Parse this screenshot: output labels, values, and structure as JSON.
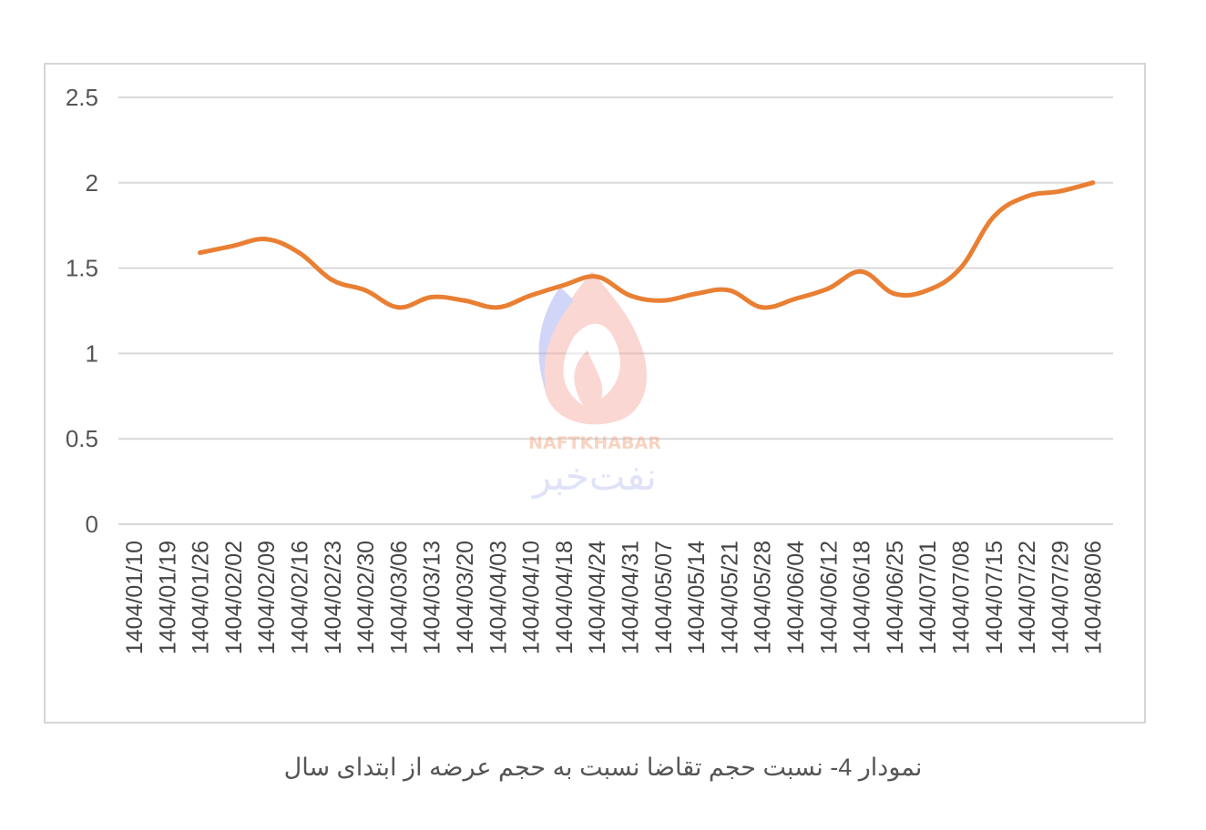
{
  "caption": "نمودار 4- نسبت حجم تقاضا نسبت به حجم عرضه از ابتدای سال",
  "watermark": {
    "latin": "NAFTKHABAR",
    "persian": "نفت‌خبر"
  },
  "colors": {
    "line": "#e97f33",
    "grid": "#d9d9d9",
    "frame": "#d6d6d6",
    "text": "#555555"
  },
  "chart_data": {
    "type": "line",
    "title": "",
    "xlabel": "",
    "ylabel": "",
    "ylim": [
      0,
      2.5
    ],
    "yticks": [
      "0",
      "0.5",
      "1",
      "1.5",
      "2",
      "2.5"
    ],
    "grid": true,
    "legend": "none",
    "categories": [
      "1404/01/10",
      "1404/01/19",
      "1404/01/26",
      "1404/02/02",
      "1404/02/09",
      "1404/02/16",
      "1404/02/23",
      "1404/02/30",
      "1404/03/06",
      "1404/03/13",
      "1404/03/20",
      "1404/04/03",
      "1404/04/10",
      "1404/04/18",
      "1404/04/24",
      "1404/04/31",
      "1404/05/07",
      "1404/05/14",
      "1404/05/21",
      "1404/05/28",
      "1404/06/04",
      "1404/06/12",
      "1404/06/18",
      "1404/06/25",
      "1404/07/01",
      "1404/07/08",
      "1404/07/15",
      "1404/07/22",
      "1404/07/29",
      "1404/08/06"
    ],
    "series": [
      {
        "values": [
          null,
          null,
          1.59,
          1.63,
          1.67,
          1.59,
          1.43,
          1.37,
          1.27,
          1.33,
          1.31,
          1.27,
          1.34,
          1.4,
          1.45,
          1.34,
          1.31,
          1.35,
          1.37,
          1.27,
          1.32,
          1.38,
          1.48,
          1.35,
          1.37,
          1.5,
          1.8,
          1.92,
          1.95,
          2.0
        ]
      }
    ]
  }
}
